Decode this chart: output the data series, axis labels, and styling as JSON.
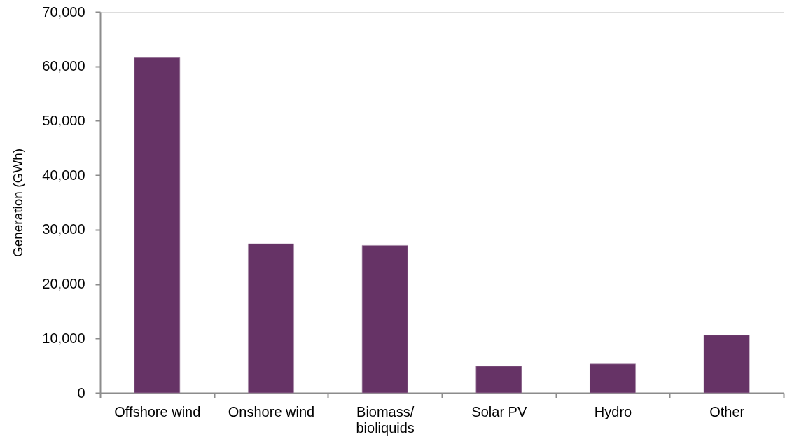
{
  "chart_data": {
    "type": "bar",
    "ylabel": "Generation (GWh)",
    "categories": [
      "Offshore wind",
      "Onshore wind",
      "Biomass/ bioliquids",
      "Solar PV",
      "Hydro",
      "Other"
    ],
    "values": [
      61600,
      27400,
      27100,
      4900,
      5300,
      10600
    ],
    "color": "#663366",
    "ylim": [
      0,
      70000
    ],
    "yticks": [
      0,
      {
        "value": 10000,
        "label": "10,000"
      },
      {
        "value": 20000,
        "label": "20,000"
      },
      {
        "value": 30000,
        "label": "30,000"
      },
      {
        "value": 40000,
        "label": "40,000"
      },
      {
        "value": 50000,
        "label": "50,000"
      },
      {
        "value": 60000,
        "label": "60,000"
      },
      {
        "value": 70000,
        "label": "70,000"
      }
    ],
    "grid": false
  }
}
